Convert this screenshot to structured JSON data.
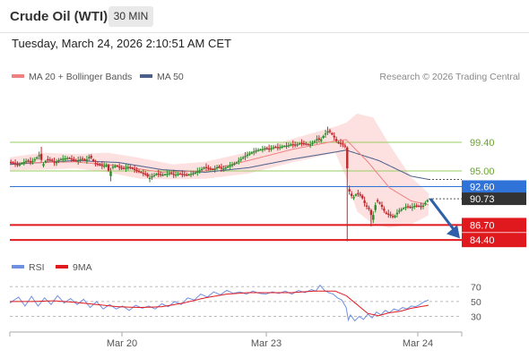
{
  "header": {
    "title": "Crude Oil (WTI)",
    "timeframe": "30 MIN",
    "datetime": "Tuesday, March 24, 2026 2:10:51 AM CET"
  },
  "legend": {
    "ma20_label": "MA 20 + Bollinger Bands",
    "ma50_label": "MA 50",
    "credit": "Research © 2026 Trading Central"
  },
  "rsi_legend": {
    "rsi_label": "RSI",
    "ma_label": "9MA"
  },
  "colors": {
    "ma20": "#f08080",
    "ma50": "#4a5f8a",
    "bollinger": "#fde0e0",
    "resistance": "#9acd60",
    "pivot": "#2f73d9",
    "support": "#e0191f",
    "current": "#333333",
    "rsi": "#6f8fe0",
    "rsi_ma": "#e0191f",
    "candle_up": "#2b8a2b",
    "candle_down": "#c0282c"
  },
  "chart_data": {
    "type": "candlestick",
    "title": "Crude Oil (WTI)",
    "timeframe": "30 MIN",
    "ylim": [
      82.5,
      107.5
    ],
    "x_tick_labels": [
      "Mar 20",
      "Mar 23",
      "Mar 24"
    ],
    "levels": [
      {
        "label": "99.40",
        "value": 99.4,
        "kind": "resistance"
      },
      {
        "label": "95.00",
        "value": 95.0,
        "kind": "resistance"
      },
      {
        "label": "92.60",
        "value": 92.6,
        "kind": "pivot"
      },
      {
        "label": "90.73",
        "value": 90.73,
        "kind": "current"
      },
      {
        "label": "86.70",
        "value": 86.7,
        "kind": "support"
      },
      {
        "label": "84.40",
        "value": 84.4,
        "kind": "support"
      }
    ],
    "close_series": [
      [
        0,
        96.4
      ],
      [
        4,
        96.2
      ],
      [
        8,
        95.9
      ],
      [
        12,
        96.3
      ],
      [
        16,
        96.6
      ],
      [
        20,
        96.4
      ],
      [
        24,
        96.9
      ],
      [
        28,
        97.6
      ],
      [
        30,
        95.8
      ],
      [
        34,
        96.8
      ],
      [
        38,
        96.7
      ],
      [
        42,
        96.2
      ],
      [
        46,
        96.8
      ],
      [
        50,
        96.9
      ],
      [
        54,
        97.0
      ],
      [
        58,
        96.8
      ],
      [
        62,
        96.5
      ],
      [
        66,
        96.9
      ],
      [
        70,
        96.6
      ],
      [
        74,
        97.3
      ],
      [
        78,
        96.2
      ],
      [
        82,
        96.0
      ],
      [
        86,
        95.8
      ],
      [
        90,
        95.9
      ],
      [
        92,
        94.2
      ],
      [
        94,
        95.6
      ],
      [
        98,
        95.8
      ],
      [
        102,
        95.5
      ],
      [
        106,
        95.4
      ],
      [
        110,
        95.6
      ],
      [
        114,
        95.3
      ],
      [
        118,
        95.0
      ],
      [
        122,
        94.7
      ],
      [
        126,
        94.5
      ],
      [
        128,
        93.8
      ],
      [
        132,
        94.3
      ],
      [
        136,
        94.6
      ],
      [
        140,
        94.4
      ],
      [
        144,
        94.5
      ],
      [
        148,
        94.7
      ],
      [
        152,
        94.4
      ],
      [
        156,
        94.6
      ],
      [
        160,
        94.5
      ],
      [
        164,
        94.4
      ],
      [
        168,
        94.6
      ],
      [
        172,
        94.8
      ],
      [
        176,
        95.2
      ],
      [
        180,
        95.6
      ],
      [
        184,
        95.4
      ],
      [
        188,
        95.2
      ],
      [
        192,
        95.7
      ],
      [
        196,
        95.3
      ],
      [
        200,
        95.6
      ],
      [
        204,
        95.9
      ],
      [
        208,
        96.2
      ],
      [
        212,
        96.7
      ],
      [
        216,
        97.2
      ],
      [
        220,
        97.6
      ],
      [
        224,
        97.9
      ],
      [
        228,
        98.2
      ],
      [
        232,
        98.3
      ],
      [
        236,
        98.5
      ],
      [
        240,
        98.4
      ],
      [
        244,
        98.7
      ],
      [
        248,
        98.6
      ],
      [
        252,
        98.8
      ],
      [
        256,
        98.9
      ],
      [
        260,
        99.1
      ],
      [
        264,
        99.0
      ],
      [
        268,
        99.3
      ],
      [
        272,
        99.2
      ],
      [
        276,
        99.0
      ],
      [
        280,
        99.4
      ],
      [
        284,
        100.0
      ],
      [
        286,
        99.6
      ],
      [
        290,
        100.6
      ],
      [
        294,
        101.2
      ],
      [
        298,
        100.4
      ],
      [
        302,
        99.4
      ],
      [
        306,
        99.2
      ],
      [
        310,
        98.6
      ],
      [
        312,
        92.2
      ],
      [
        316,
        90.8
      ],
      [
        320,
        91.6
      ],
      [
        324,
        91.2
      ],
      [
        328,
        89.7
      ],
      [
        332,
        89.0
      ],
      [
        334,
        87.5
      ],
      [
        338,
        90.5
      ],
      [
        342,
        89.8
      ],
      [
        346,
        88.6
      ],
      [
        350,
        88.3
      ],
      [
        354,
        87.9
      ],
      [
        358,
        88.8
      ],
      [
        362,
        89.2
      ],
      [
        366,
        89.6
      ],
      [
        370,
        89.4
      ],
      [
        374,
        89.7
      ],
      [
        378,
        89.6
      ],
      [
        380,
        89.5
      ],
      [
        384,
        90.3
      ],
      [
        386,
        90.73
      ]
    ],
    "ma20_series": [
      [
        0,
        96.2
      ],
      [
        60,
        96.4
      ],
      [
        100,
        95.8
      ],
      [
        140,
        94.8
      ],
      [
        180,
        95.0
      ],
      [
        220,
        96.6
      ],
      [
        260,
        98.3
      ],
      [
        300,
        99.6
      ],
      [
        310,
        99.8
      ],
      [
        330,
        96.4
      ],
      [
        350,
        92.4
      ],
      [
        370,
        90.4
      ],
      [
        386,
        89.8
      ]
    ],
    "ma50_series": [
      [
        0,
        96.0
      ],
      [
        60,
        96.6
      ],
      [
        100,
        96.3
      ],
      [
        140,
        95.2
      ],
      [
        180,
        94.8
      ],
      [
        220,
        95.5
      ],
      [
        260,
        96.8
      ],
      [
        300,
        97.9
      ],
      [
        310,
        98.2
      ],
      [
        340,
        96.6
      ],
      [
        370,
        94.2
      ],
      [
        386,
        93.7
      ]
    ],
    "bb_upper_series": [
      [
        0,
        97.1
      ],
      [
        30,
        97.8
      ],
      [
        60,
        97.6
      ],
      [
        90,
        97.8
      ],
      [
        120,
        97.0
      ],
      [
        150,
        96.0
      ],
      [
        180,
        96.4
      ],
      [
        220,
        97.9
      ],
      [
        260,
        99.9
      ],
      [
        300,
        101.8
      ],
      [
        310,
        102.4
      ],
      [
        320,
        103.8
      ],
      [
        335,
        103.2
      ],
      [
        350,
        99.0
      ],
      [
        370,
        94.0
      ],
      [
        386,
        91.6
      ]
    ],
    "bb_lower_series": [
      [
        0,
        95.1
      ],
      [
        30,
        95.2
      ],
      [
        60,
        95.4
      ],
      [
        90,
        94.8
      ],
      [
        120,
        93.8
      ],
      [
        150,
        93.7
      ],
      [
        180,
        93.8
      ],
      [
        220,
        94.6
      ],
      [
        260,
        96.3
      ],
      [
        300,
        97.8
      ],
      [
        310,
        94.0
      ],
      [
        320,
        88.8
      ],
      [
        335,
        86.8
      ],
      [
        350,
        86.3
      ],
      [
        370,
        86.8
      ],
      [
        386,
        88.2
      ]
    ],
    "forecast": {
      "from": 90.73,
      "to": 85.2
    },
    "rsi": {
      "ylim": [
        15,
        80
      ],
      "y_ticks": [
        30,
        50,
        70
      ],
      "rsi_series": [
        [
          0,
          48
        ],
        [
          8,
          56
        ],
        [
          14,
          44
        ],
        [
          20,
          57
        ],
        [
          26,
          44
        ],
        [
          32,
          55
        ],
        [
          38,
          46
        ],
        [
          44,
          58
        ],
        [
          50,
          48
        ],
        [
          56,
          54
        ],
        [
          62,
          46
        ],
        [
          68,
          53
        ],
        [
          74,
          42
        ],
        [
          80,
          50
        ],
        [
          86,
          40
        ],
        [
          92,
          46
        ],
        [
          98,
          40
        ],
        [
          104,
          44
        ],
        [
          110,
          38
        ],
        [
          116,
          45
        ],
        [
          122,
          41
        ],
        [
          128,
          44
        ],
        [
          134,
          40
        ],
        [
          140,
          47
        ],
        [
          146,
          43
        ],
        [
          152,
          50
        ],
        [
          158,
          46
        ],
        [
          164,
          55
        ],
        [
          170,
          52
        ],
        [
          176,
          60
        ],
        [
          182,
          56
        ],
        [
          188,
          63
        ],
        [
          194,
          59
        ],
        [
          200,
          65
        ],
        [
          206,
          61
        ],
        [
          212,
          63
        ],
        [
          218,
          60
        ],
        [
          224,
          64
        ],
        [
          230,
          61
        ],
        [
          236,
          60
        ],
        [
          242,
          63
        ],
        [
          248,
          61
        ],
        [
          254,
          64
        ],
        [
          260,
          60
        ],
        [
          266,
          65
        ],
        [
          272,
          62
        ],
        [
          278,
          66
        ],
        [
          282,
          64
        ],
        [
          286,
          72
        ],
        [
          290,
          65
        ],
        [
          294,
          62
        ],
        [
          298,
          60
        ],
        [
          302,
          55
        ],
        [
          306,
          52
        ],
        [
          310,
          42
        ],
        [
          312,
          25
        ],
        [
          314,
          32
        ],
        [
          318,
          24
        ],
        [
          322,
          30
        ],
        [
          326,
          26
        ],
        [
          330,
          33
        ],
        [
          334,
          28
        ],
        [
          338,
          36
        ],
        [
          342,
          32
        ],
        [
          346,
          38
        ],
        [
          350,
          35
        ],
        [
          354,
          40
        ],
        [
          358,
          38
        ],
        [
          362,
          42
        ],
        [
          366,
          40
        ],
        [
          370,
          44
        ],
        [
          374,
          43
        ],
        [
          378,
          46
        ],
        [
          382,
          50
        ],
        [
          386,
          52
        ]
      ],
      "ma_series": [
        [
          0,
          50
        ],
        [
          20,
          50
        ],
        [
          40,
          51
        ],
        [
          60,
          49
        ],
        [
          80,
          46
        ],
        [
          100,
          43
        ],
        [
          120,
          42
        ],
        [
          140,
          43
        ],
        [
          160,
          48
        ],
        [
          180,
          55
        ],
        [
          200,
          60
        ],
        [
          220,
          62
        ],
        [
          240,
          62
        ],
        [
          260,
          62
        ],
        [
          280,
          64
        ],
        [
          300,
          64
        ],
        [
          310,
          58
        ],
        [
          320,
          46
        ],
        [
          330,
          34
        ],
        [
          340,
          31
        ],
        [
          350,
          35
        ],
        [
          360,
          37
        ],
        [
          370,
          41
        ],
        [
          386,
          45
        ]
      ]
    }
  }
}
